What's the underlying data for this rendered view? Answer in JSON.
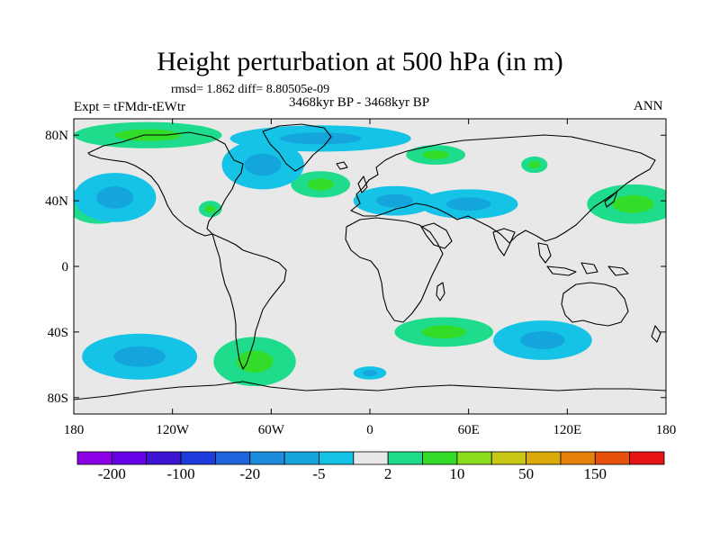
{
  "title": "Height perturbation at 500 hPa (in m)",
  "stats": "rmsd= 1.862 diff= 8.80505e-09",
  "experiment": "Expt = tFMdr-tEWtr",
  "period": "3468kyr BP - 3468kyr BP",
  "season": "ANN",
  "map": {
    "projection": "cylindrical equidistant",
    "lon_range": [
      -180,
      180
    ],
    "lat_range": [
      -90,
      90
    ],
    "x_ticks": [
      {
        "lon": -180,
        "label": "180"
      },
      {
        "lon": -120,
        "label": "120W"
      },
      {
        "lon": -60,
        "label": "60W"
      },
      {
        "lon": 0,
        "label": "0"
      },
      {
        "lon": 60,
        "label": "60E"
      },
      {
        "lon": 120,
        "label": "120E"
      },
      {
        "lon": 180,
        "label": "180"
      }
    ],
    "y_ticks": [
      {
        "lat": 80,
        "label": "80N"
      },
      {
        "lat": 40,
        "label": "40N"
      },
      {
        "lat": 0,
        "label": "0"
      },
      {
        "lat": -40,
        "label": "40S"
      },
      {
        "lat": -80,
        "label": "80S"
      }
    ],
    "colors": {
      "background": "#e8e8e8",
      "coast": "#000000"
    }
  },
  "colorbar": {
    "colors": [
      "#8c00e6",
      "#6600e6",
      "#3c14d2",
      "#1e3cdc",
      "#1e64dc",
      "#1e8cdc",
      "#14a5dc",
      "#14c3e6",
      "#e8e8e8",
      "#1edc8c",
      "#32dc28",
      "#8cdc1e",
      "#c8c814",
      "#dcaa0a",
      "#e6820a",
      "#e6500a",
      "#e61414"
    ],
    "labels": [
      {
        "after_box": 1,
        "text": "-200"
      },
      {
        "after_box": 3,
        "text": "-100"
      },
      {
        "after_box": 5,
        "text": "-20"
      },
      {
        "after_box": 7,
        "text": "-5"
      },
      {
        "after_box": 9,
        "text": "2"
      },
      {
        "after_box": 11,
        "text": "10"
      },
      {
        "after_box": 13,
        "text": "50"
      },
      {
        "after_box": 15,
        "text": "150"
      }
    ]
  },
  "anomaly_regions": [
    {
      "name": "north-atlantic-negative",
      "kind": "negative",
      "lon": -30,
      "lat": 78,
      "rlon": 55,
      "rlat": 8
    },
    {
      "name": "europe-negative",
      "kind": "negative",
      "lon": 15,
      "lat": 40,
      "rlon": 25,
      "rlat": 9
    },
    {
      "name": "asia-negative",
      "kind": "negative",
      "lon": 60,
      "lat": 38,
      "rlon": 30,
      "rlat": 9
    },
    {
      "name": "north-pacific-positive",
      "kind": "positive",
      "lon": 160,
      "lat": 38,
      "rlon": 28,
      "rlat": 12
    },
    {
      "name": "west-pacific-positive",
      "kind": "positive",
      "lon": -165,
      "lat": 38,
      "rlon": 20,
      "rlat": 12
    },
    {
      "name": "north-pacific-negative",
      "kind": "negative",
      "lon": -155,
      "lat": 42,
      "rlon": 25,
      "rlat": 15
    },
    {
      "name": "arctic-positive",
      "kind": "positive",
      "lon": -135,
      "lat": 80,
      "rlon": 45,
      "rlat": 8
    },
    {
      "name": "north-atlantic-positive",
      "kind": "positive",
      "lon": -30,
      "lat": 50,
      "rlon": 18,
      "rlat": 8
    },
    {
      "name": "west-atlantic-negative",
      "kind": "negative",
      "lon": -65,
      "lat": 62,
      "rlon": 25,
      "rlat": 15
    },
    {
      "name": "eurasia-positive",
      "kind": "positive",
      "lon": 40,
      "lat": 68,
      "rlon": 18,
      "rlat": 6
    },
    {
      "name": "eastern-us-positive",
      "kind": "positive",
      "lon": -97,
      "lat": 35,
      "rlon": 7,
      "rlat": 5
    },
    {
      "name": "south-pacific-negative",
      "kind": "negative",
      "lon": -140,
      "lat": -55,
      "rlon": 35,
      "rlat": 14
    },
    {
      "name": "south-america-positive",
      "kind": "positive",
      "lon": -70,
      "lat": -58,
      "rlon": 25,
      "rlat": 15
    },
    {
      "name": "south-atlantic-positive",
      "kind": "positive",
      "lon": 45,
      "lat": -40,
      "rlon": 30,
      "rlat": 9
    },
    {
      "name": "southern-indian-negative",
      "kind": "negative",
      "lon": 105,
      "lat": -45,
      "rlon": 30,
      "rlat": 12
    },
    {
      "name": "antarctic-negative",
      "kind": "negative",
      "lon": 0,
      "lat": -65,
      "rlon": 10,
      "rlat": 4
    },
    {
      "name": "east-asia-positive",
      "kind": "positive",
      "lon": 100,
      "lat": 62,
      "rlon": 8,
      "rlat": 5
    }
  ]
}
